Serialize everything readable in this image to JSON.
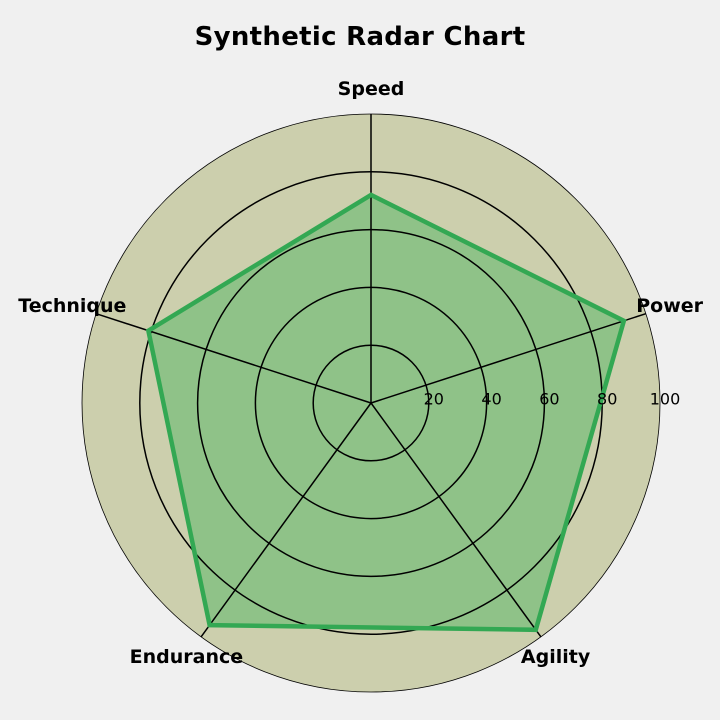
{
  "chart_data": {
    "type": "radar",
    "title": "Synthetic Radar Chart",
    "categories": [
      "Speed",
      "Power",
      "Agility",
      "Endurance",
      "Technique"
    ],
    "series": [
      {
        "values": [
          72,
          92,
          97,
          95,
          81
        ]
      }
    ],
    "rlim": [
      0,
      100
    ],
    "rticks": [
      20,
      40,
      60,
      80,
      100
    ],
    "rtick_labels": [
      "20",
      "40",
      "60",
      "80",
      "100"
    ],
    "grid": true,
    "colors": {
      "background": "#f0f0f0",
      "plot_face": "#cccfad",
      "line": "#33a853",
      "fill": "#8fc288",
      "grid": "#000000"
    }
  }
}
